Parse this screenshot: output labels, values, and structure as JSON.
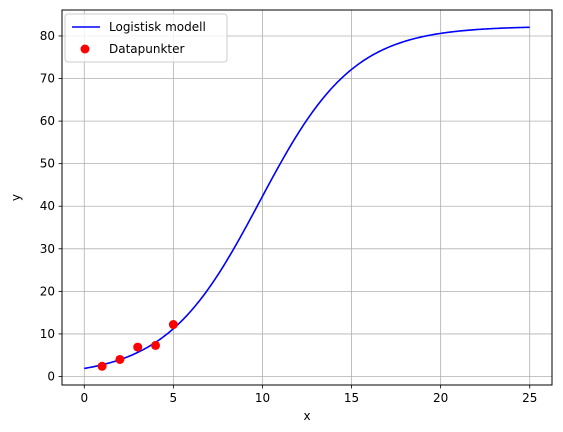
{
  "chart_data": {
    "type": "line",
    "xlabel": "x",
    "ylabel": "y",
    "xlim": [
      -1.25,
      26.25
    ],
    "ylim": [
      -2.0,
      86.1
    ],
    "xticks": [
      0,
      5,
      10,
      15,
      20,
      25
    ],
    "yticks": [
      0,
      10,
      20,
      30,
      40,
      50,
      60,
      70,
      80
    ],
    "grid": true,
    "legend_position": "top-left",
    "series": [
      {
        "name": "Logistisk modell",
        "kind": "line",
        "color": "#0000ff",
        "model": {
          "type": "logistic",
          "K": 82.3,
          "r": 0.3805,
          "x0": 9.85
        },
        "x_range": [
          0,
          25
        ]
      },
      {
        "name": "Datapunkter",
        "kind": "scatter",
        "color": "#ff0000",
        "points": [
          {
            "x": 1,
            "y": 2.4
          },
          {
            "x": 2,
            "y": 4.0
          },
          {
            "x": 3,
            "y": 6.9
          },
          {
            "x": 4,
            "y": 7.3
          },
          {
            "x": 5,
            "y": 12.2
          }
        ]
      }
    ]
  }
}
